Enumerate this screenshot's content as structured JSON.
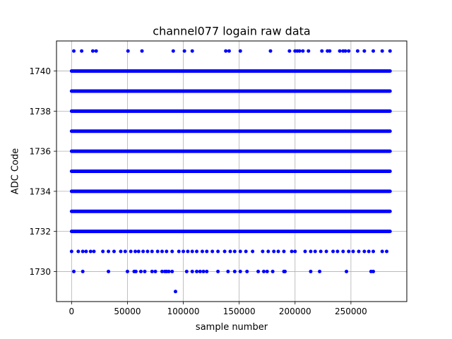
{
  "chart_data": {
    "type": "scatter",
    "title": "channel077 logain raw data",
    "xlabel": "sample number",
    "ylabel": "ADC Code",
    "xlim": [
      -13500,
      300000
    ],
    "ylim": [
      1728.5,
      1741.5
    ],
    "xticks": [
      0,
      50000,
      100000,
      150000,
      200000,
      250000
    ],
    "xtick_labels": [
      "0",
      "50000",
      "100000",
      "150000",
      "200000",
      "250000"
    ],
    "yticks": [
      1730,
      1732,
      1734,
      1736,
      1738,
      1740
    ],
    "ytick_labels": [
      "1730",
      "1732",
      "1734",
      "1736",
      "1738",
      "1740"
    ],
    "grid": true,
    "marker_color": "#0000ff",
    "x_range_of_samples": [
      0,
      285000
    ],
    "series": [
      {
        "dense_levels": [
          {
            "y": 1732,
            "x_start": 0,
            "x_end": 285000
          },
          {
            "y": 1733,
            "x_start": 0,
            "x_end": 285000
          },
          {
            "y": 1734,
            "x_start": 0,
            "x_end": 285000
          },
          {
            "y": 1735,
            "x_start": 0,
            "x_end": 285000
          },
          {
            "y": 1736,
            "x_start": 0,
            "x_end": 285000
          },
          {
            "y": 1737,
            "x_start": 0,
            "x_end": 285000
          },
          {
            "y": 1738,
            "x_start": 0,
            "x_end": 285000
          },
          {
            "y": 1739,
            "x_start": 0,
            "x_end": 285000
          },
          {
            "y": 1740,
            "x_start": 0,
            "x_end": 285000
          }
        ],
        "points": [
          {
            "y": 1741,
            "x": [
              2000,
              9000,
              19000,
              22000,
              50500,
              63000,
              91000,
              101000,
              108000,
              138000,
              141000,
              151000,
              178000,
              195000,
              200000,
              202000,
              204000,
              207000,
              212000,
              224000,
              229000,
              231000,
              240000,
              243000,
              245000,
              248000,
              256000,
              262000,
              270000,
              278000,
              285000
            ]
          },
          {
            "y": 1731,
            "x": [
              0,
              6000,
              10000,
              13000,
              17000,
              20000,
              28000,
              33000,
              38000,
              44000,
              48000,
              53000,
              57000,
              60000,
              64000,
              68000,
              72000,
              77000,
              81000,
              85000,
              90000,
              96000,
              100000,
              104000,
              108000,
              112000,
              117000,
              121000,
              126000,
              131000,
              137000,
              142000,
              146000,
              151000,
              156000,
              162000,
              171000,
              176000,
              181000,
              185000,
              190000,
              197000,
              200000,
              209000,
              214000,
              218000,
              223000,
              228000,
              234000,
              238000,
              243000,
              248000,
              252000,
              257000,
              262000,
              266000,
              270000,
              278000,
              282000
            ]
          },
          {
            "y": 1730,
            "x": [
              2000,
              10000,
              33000,
              50000,
              56000,
              57500,
              62000,
              65500,
              72000,
              75000,
              81000,
              83500,
              85000,
              87000,
              90000,
              103000,
              108000,
              112000,
              115000,
              118000,
              121000,
              131000,
              140000,
              146000,
              151000,
              157000,
              167000,
              172000,
              175000,
              180000,
              190000,
              191000,
              214000,
              222000,
              246000,
              268000,
              270000
            ]
          },
          {
            "y": 1729,
            "x": [
              93000
            ]
          }
        ]
      }
    ]
  }
}
